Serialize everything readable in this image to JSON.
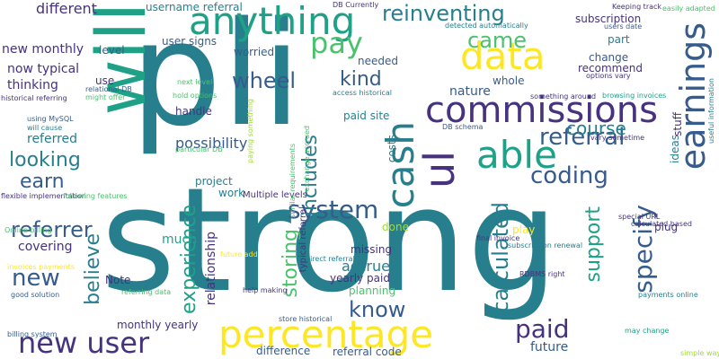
{
  "palette": {
    "purple": "#46327e",
    "indigo": "#365c8d",
    "blue": "#3b528b",
    "teal": "#277f8e",
    "green_teal": "#1fa187",
    "green": "#4ac16d",
    "lime": "#a0da39",
    "yellow": "#fde725"
  },
  "words": [
    "strong",
    "pli",
    "will",
    "ul",
    "anything",
    "data",
    "commissions",
    "earnings",
    "cash",
    "able",
    "percentage",
    "new user",
    "system",
    "pay",
    "referral",
    "reinventing",
    "came",
    "coding",
    "specify",
    "paid",
    "calculated",
    "know",
    "referrer",
    "new",
    "earn",
    "looking",
    "wheel",
    "kind",
    "includes",
    "storing",
    "experience",
    "support",
    "believe",
    "course",
    "possibility",
    "different",
    "nature",
    "accrued",
    "referred",
    "covering",
    "future",
    "relationship",
    "much",
    "missing",
    "yearly paid",
    "monthly yearly",
    "difference",
    "referral code",
    "planning",
    "needed",
    "whole",
    "paid site",
    "costs",
    "username referral",
    "new monthly",
    "now typical",
    "thinking",
    "level",
    "use",
    "user signs",
    "worried",
    "handle",
    "project",
    "work",
    "Multiple levels",
    "play",
    "plug",
    "ideas",
    "change",
    "recommend",
    "subscription",
    "part",
    "stuff",
    "typical referral",
    "Note",
    "done",
    "DB Currently",
    "Keeping track",
    "easily adapted",
    "users date",
    "options vary",
    "vary sometime",
    "useful information",
    "something around",
    "browsing invoices",
    "detected automatically",
    "access historical",
    "DB schema",
    "relational DB",
    "might offer",
    "historical referring",
    "using MySQL",
    "will cause",
    "flexible implementation",
    "following features",
    "Online billing",
    "invoices payments",
    "good solution",
    "billing system",
    "referring data",
    "help making",
    "store historical",
    "direct referral",
    "exchange accrued",
    "similar requirements",
    "particular DB",
    "paying something",
    "hold options",
    "next level",
    "future add",
    "final invoice",
    "subscription renewal",
    "RDBMS right",
    "payments online",
    "may change",
    "simple way",
    "special URL",
    "calculated based"
  ]
}
